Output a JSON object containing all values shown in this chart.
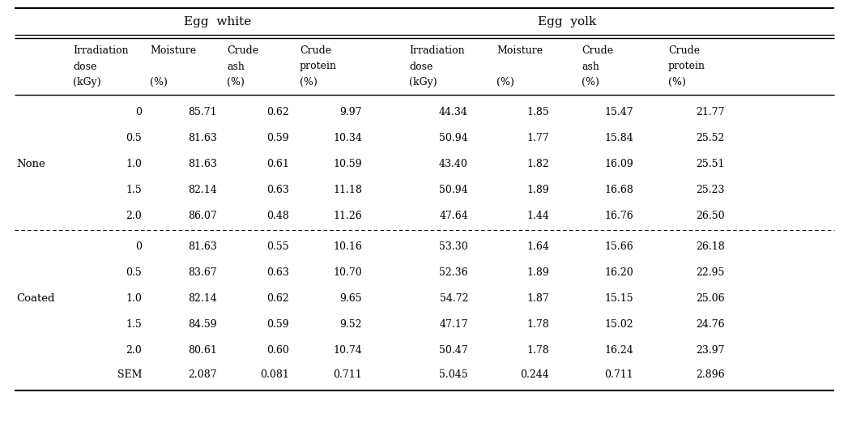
{
  "egg_white_header": "Egg  white",
  "egg_yolk_header": "Egg  yolk",
  "col_header_lines": [
    [
      "Irradiation",
      "dose",
      "(kGy)"
    ],
    [
      "Moisture",
      "",
      "(%)"
    ],
    [
      "Crude",
      "ash",
      "(%)"
    ],
    [
      "Crude",
      "protein",
      "(%)"
    ]
  ],
  "row_labels": [
    "None",
    "Coated"
  ],
  "none_rows": [
    [
      "0",
      "85.71",
      "0.62",
      "9.97",
      "44.34",
      "1.85",
      "15.47",
      "21.77"
    ],
    [
      "0.5",
      "81.63",
      "0.59",
      "10.34",
      "50.94",
      "1.77",
      "15.84",
      "25.52"
    ],
    [
      "1.0",
      "81.63",
      "0.61",
      "10.59",
      "43.40",
      "1.82",
      "16.09",
      "25.51"
    ],
    [
      "1.5",
      "82.14",
      "0.63",
      "11.18",
      "50.94",
      "1.89",
      "16.68",
      "25.23"
    ],
    [
      "2.0",
      "86.07",
      "0.48",
      "11.26",
      "47.64",
      "1.44",
      "16.76",
      "26.50"
    ]
  ],
  "coated_rows": [
    [
      "0",
      "81.63",
      "0.55",
      "10.16",
      "53.30",
      "1.64",
      "15.66",
      "26.18"
    ],
    [
      "0.5",
      "83.67",
      "0.63",
      "10.70",
      "52.36",
      "1.89",
      "16.20",
      "22.95"
    ],
    [
      "1.0",
      "82.14",
      "0.62",
      "9.65",
      "54.72",
      "1.87",
      "15.15",
      "25.06"
    ],
    [
      "1.5",
      "84.59",
      "0.59",
      "9.52",
      "47.17",
      "1.78",
      "15.02",
      "24.76"
    ],
    [
      "2.0",
      "80.61",
      "0.60",
      "10.74",
      "50.47",
      "1.78",
      "16.24",
      "23.97"
    ]
  ],
  "sem_row": [
    "SEM",
    "2.087",
    "0.081",
    "0.711",
    "5.045",
    "0.244",
    "0.711",
    "2.896"
  ],
  "bg_color": "#ffffff",
  "font_size": 9.0,
  "header_font_size": 11.0
}
